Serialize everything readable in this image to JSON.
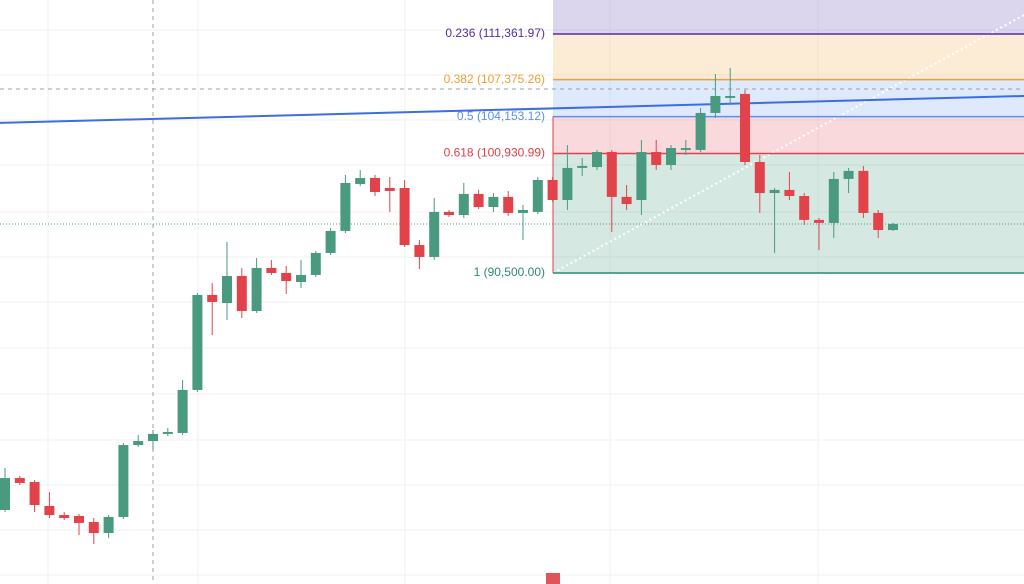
{
  "chart_data": {
    "type": "candlestick",
    "ylim": [
      63350,
      114330
    ],
    "up_color": "#4a9a80",
    "down_color": "#e2434b",
    "open": [
      69810,
      72600,
      72250,
      70160,
      69370,
      69290,
      68760,
      67800,
      69200,
      75480,
      75830,
      76450,
      76530,
      80290,
      88580,
      87880,
      90240,
      87180,
      90940,
      90500,
      89710,
      90330,
      92250,
      94170,
      98270,
      98790,
      97920,
      97920,
      92940,
      91900,
      95830,
      95560,
      97400,
      96260,
      97140,
      95740,
      95830,
      98620,
      96870,
      99670,
      99750,
      101060,
      97140,
      96870,
      101060,
      99930,
      101240,
      101240,
      104470,
      105780,
      106130,
      100190,
      97480,
      97750,
      97220,
      95130,
      94870,
      98710,
      99410,
      95740,
      94250
    ],
    "high": [
      73480,
      72780,
      72430,
      71380,
      69630,
      69460,
      69110,
      69370,
      75660,
      76360,
      76790,
      76970,
      81160,
      88750,
      89630,
      93210,
      90940,
      91810,
      91640,
      91110,
      91640,
      92420,
      94430,
      99060,
      99490,
      99060,
      98880,
      98620,
      93380,
      97050,
      96000,
      98360,
      97750,
      97480,
      97660,
      96440,
      98880,
      98880,
      101670,
      100540,
      101240,
      101240,
      98180,
      102110,
      102110,
      101670,
      102110,
      104900,
      107870,
      108400,
      106480,
      100800,
      97920,
      99320,
      97480,
      95300,
      99320,
      99670,
      99840,
      96000,
      94870
    ],
    "low": [
      69630,
      71990,
      69630,
      69110,
      68940,
      67630,
      66840,
      67370,
      69020,
      75310,
      75050,
      76270,
      76360,
      80110,
      85090,
      86400,
      86570,
      87010,
      90330,
      88670,
      89190,
      90150,
      92070,
      93990,
      98100,
      97220,
      95830,
      92770,
      90850,
      91640,
      95390,
      95300,
      96090,
      95830,
      95480,
      93380,
      95650,
      96700,
      96000,
      98970,
      99490,
      94080,
      96000,
      95560,
      99490,
      99490,
      100800,
      101060,
      104030,
      105250,
      99930,
      95740,
      92250,
      96870,
      94690,
      92510,
      93560,
      97480,
      95300,
      93560,
      94170
    ],
    "close": [
      72600,
      72170,
      70250,
      69370,
      69110,
      68680,
      67800,
      69200,
      75480,
      75830,
      76450,
      76620,
      80290,
      88580,
      87970,
      90240,
      87180,
      90940,
      90500,
      89800,
      90330,
      92250,
      94170,
      98360,
      98790,
      97570,
      97660,
      92940,
      91900,
      95830,
      95560,
      97400,
      96260,
      97140,
      95740,
      96000,
      98620,
      96870,
      99670,
      99840,
      101060,
      97140,
      96520,
      101060,
      99930,
      101410,
      101410,
      104470,
      105950,
      105950,
      100190,
      97480,
      97750,
      97220,
      95130,
      94870,
      98710,
      99410,
      95740,
      94250,
      94780
    ],
    "fib_levels": [
      {
        "value": 111361.97,
        "label": "0.236 (111,361.97)",
        "color": "#512da8"
      },
      {
        "value": 107375.26,
        "label": "0.382 (107,375.26)",
        "color": "#f0a030"
      },
      {
        "value": 104153.12,
        "label": "0.5 (104,153.12)",
        "color": "#5b8ff0"
      },
      {
        "value": 100930.99,
        "label": "0.618 (100,930.99)",
        "color": "#e0404a"
      },
      {
        "value": 90500,
        "label": "1 (90,500.00)",
        "color": "#2e8a6c"
      }
    ],
    "trend_line": {
      "color": "#3d6ee0",
      "values": [
        103600,
        105950
      ]
    },
    "crosshair_price": 106560
  }
}
